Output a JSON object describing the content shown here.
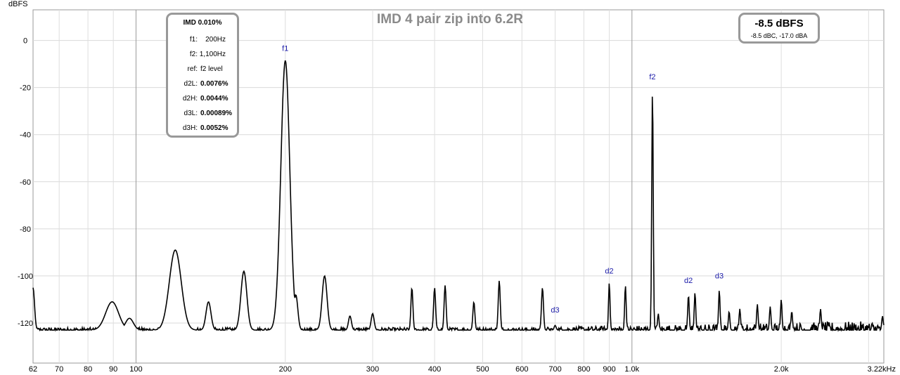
{
  "chart_data": {
    "type": "line",
    "title": "IMD 4 pair zip into 6.2R",
    "ylabel": "dBFS",
    "xlabel": "",
    "xscale": "log",
    "xlim": [
      62,
      3220
    ],
    "ylim": [
      -137,
      13
    ],
    "yticks": [
      0,
      -20,
      -40,
      -60,
      -80,
      -100,
      -120
    ],
    "ytick_labels": [
      "0",
      "-20",
      "-40",
      "-60",
      "-80",
      "-100",
      "-120"
    ],
    "xticks": [
      62,
      70,
      80,
      90,
      100,
      200,
      300,
      400,
      500,
      600,
      700,
      800,
      900,
      1000,
      2000,
      3220
    ],
    "xtick_labels": [
      "62",
      "70",
      "80",
      "90",
      "100",
      "200",
      "300",
      "400",
      "500",
      "600",
      "700",
      "800",
      "900",
      "1.0k",
      "2.0k",
      "3.22kHz"
    ],
    "grid": true,
    "noise_floor_db": -123,
    "series": [
      {
        "peaks": [
          {
            "f": 62,
            "db": -105,
            "w": 0.003
          },
          {
            "f": 89.5,
            "db": -111,
            "w": 0.013
          },
          {
            "f": 97,
            "db": -118,
            "w": 0.008
          },
          {
            "f": 120,
            "db": -89,
            "w": 0.012
          },
          {
            "f": 140,
            "db": -111,
            "w": 0.005
          },
          {
            "f": 165,
            "db": -98,
            "w": 0.006
          },
          {
            "f": 200,
            "db": -8.5,
            "w": 0.009
          },
          {
            "f": 210,
            "db": -108,
            "w": 0.004
          },
          {
            "f": 240,
            "db": -100,
            "w": 0.005
          },
          {
            "f": 270,
            "db": -117,
            "w": 0.003
          },
          {
            "f": 300,
            "db": -116,
            "w": 0.003
          },
          {
            "f": 360,
            "db": -105,
            "w": 0.002
          },
          {
            "f": 400,
            "db": -105,
            "w": 0.002
          },
          {
            "f": 420,
            "db": -104,
            "w": 0.002
          },
          {
            "f": 480,
            "db": -111,
            "w": 0.002
          },
          {
            "f": 540,
            "db": -102,
            "w": 0.002
          },
          {
            "f": 660,
            "db": -105,
            "w": 0.002
          },
          {
            "f": 700,
            "db": -121,
            "w": 0.002
          },
          {
            "f": 900,
            "db": -103,
            "w": 0.0015
          },
          {
            "f": 970,
            "db": -104,
            "w": 0.0015
          },
          {
            "f": 1100,
            "db": -20.5,
            "w": 0.0015
          },
          {
            "f": 1130,
            "db": -116,
            "w": 0.0015
          },
          {
            "f": 1300,
            "db": -108,
            "w": 0.0015
          },
          {
            "f": 1340,
            "db": -107,
            "w": 0.0015
          },
          {
            "f": 1500,
            "db": -106,
            "w": 0.0015
          },
          {
            "f": 1570,
            "db": -115,
            "w": 0.0015
          },
          {
            "f": 1650,
            "db": -114,
            "w": 0.0015
          },
          {
            "f": 1790,
            "db": -112,
            "w": 0.0015
          },
          {
            "f": 1900,
            "db": -113,
            "w": 0.0015
          },
          {
            "f": 2000,
            "db": -110,
            "w": 0.0015
          },
          {
            "f": 2100,
            "db": -115,
            "w": 0.0015
          },
          {
            "f": 2400,
            "db": -114,
            "w": 0.0015
          },
          {
            "f": 3200,
            "db": -117,
            "w": 0.0015
          }
        ]
      }
    ],
    "annotations": [
      {
        "text": "f1",
        "f": 200,
        "db": -4.5
      },
      {
        "text": "f2",
        "f": 1100,
        "db": -16.5
      },
      {
        "text": "d2",
        "f": 900,
        "db": -99
      },
      {
        "text": "d3",
        "f": 700,
        "db": -115.5
      },
      {
        "text": "d2",
        "f": 1300,
        "db": -103
      },
      {
        "text": "d3",
        "f": 1500,
        "db": -101
      }
    ]
  },
  "imd_box": {
    "header": "IMD 0.010%",
    "rows": [
      {
        "key": "f1:",
        "value": "200Hz",
        "bold": false
      },
      {
        "key": "f2:",
        "value": "1,100Hz",
        "bold": false
      },
      {
        "key": "ref:",
        "value": "f2 level",
        "bold": false
      },
      {
        "key": "d2L:",
        "value": "0.0076%",
        "bold": true
      },
      {
        "key": "d2H:",
        "value": "0.0044%",
        "bold": true
      },
      {
        "key": "d3L:",
        "value": "0.00089%",
        "bold": true
      },
      {
        "key": "d3H:",
        "value": "0.0052%",
        "bold": true
      }
    ]
  },
  "level_box": {
    "main": "-8.5 dBFS",
    "sub": "-8.5 dBC, -17.0 dBA"
  }
}
